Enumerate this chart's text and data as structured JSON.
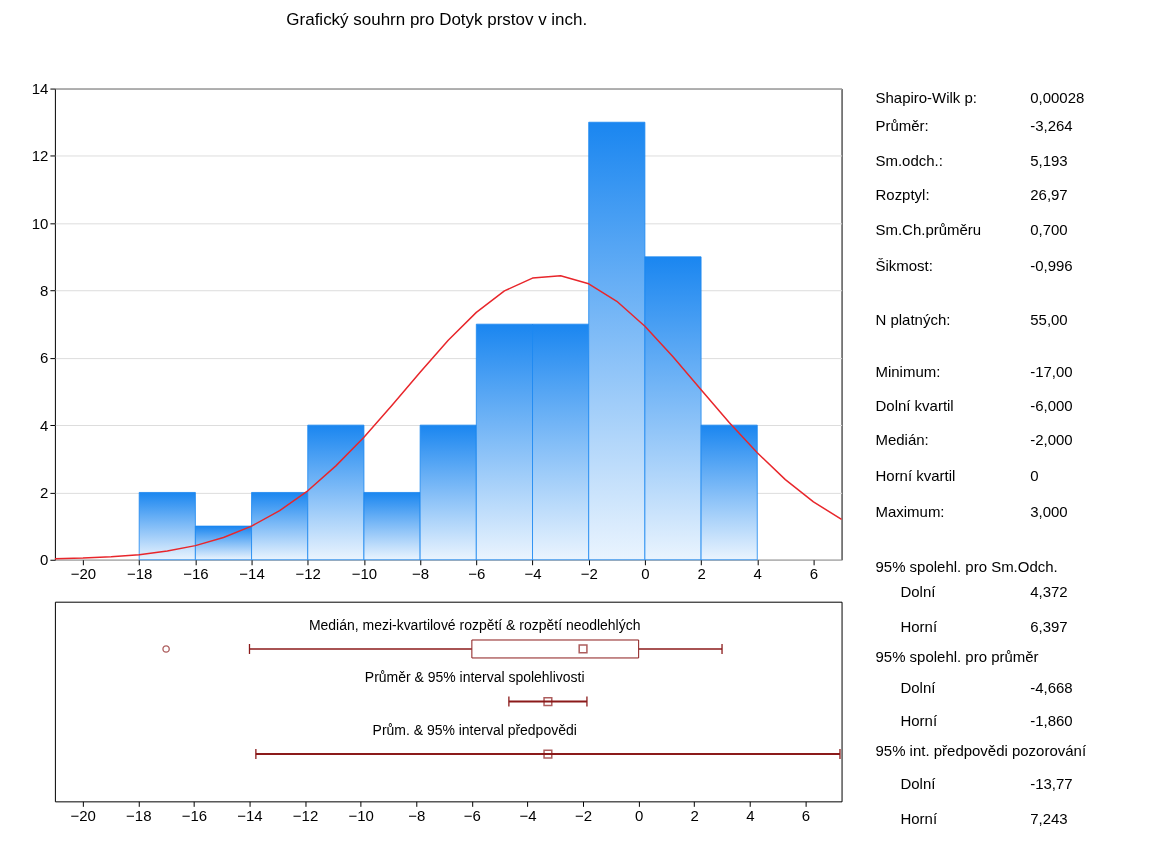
{
  "chart_data": [
    {
      "type": "histogram",
      "title": "Grafický souhrn pro Dotyk prstov v inch.",
      "bins": [
        -18,
        -16,
        -14,
        -12,
        -10,
        -8,
        -6,
        -4,
        -2,
        0,
        2,
        4
      ],
      "values": [
        2,
        1,
        2,
        4,
        2,
        4,
        7,
        7,
        13,
        9,
        4
      ],
      "color": "#1a86f0",
      "series": [
        {
          "type": "line",
          "color": "#e8262b",
          "x": [
            -21,
            -20,
            -19,
            -18,
            -17,
            -16,
            -15,
            -14,
            -13,
            -12,
            -11,
            -10,
            -9,
            -8,
            -7,
            -6,
            -5,
            -4,
            -3,
            -2,
            -1,
            0,
            1,
            2,
            3,
            4,
            5,
            6,
            7
          ],
          "values": [
            0.03,
            0.05,
            0.09,
            0.15,
            0.26,
            0.42,
            0.66,
            1.0,
            1.46,
            2.05,
            2.79,
            3.64,
            4.59,
            5.57,
            6.52,
            7.35,
            7.99,
            8.37,
            8.44,
            8.2,
            7.68,
            6.94,
            6.03,
            5.05,
            4.08,
            3.18,
            2.38,
            1.72,
            1.2
          ]
        }
      ],
      "xlim": [
        -21,
        7
      ],
      "xticks": [
        -20,
        -18,
        -16,
        -14,
        -12,
        -10,
        -8,
        -6,
        -4,
        -2,
        0,
        2,
        4,
        6
      ],
      "ylim": [
        0,
        14
      ],
      "yticks": [
        0,
        2,
        4,
        6,
        8,
        10,
        12,
        14
      ],
      "grid": "y"
    },
    {
      "type": "box",
      "orientation": "horizontal",
      "categories": [
        "Medián, mezi-kvartilové rozpětí & rozpětí neodlehlých",
        "Průměr & 95% interval spolehlivosti",
        "Prům. & 95% interval předpovědi"
      ],
      "series": [
        {
          "type": "box",
          "color": "#8b1a1a",
          "boxes": [
            {
              "low": -14,
              "q1": -6,
              "median": -2,
              "q3": 0,
              "high": 3,
              "outliers": [
                -17
              ]
            },
            null,
            null
          ]
        },
        {
          "type": "scatter",
          "color": "#8b1a1a",
          "marker": "square",
          "values": [
            null,
            -3.264,
            -3.264
          ],
          "errors": [
            null,
            [
              -4.668,
              -1.86
            ],
            [
              -13.77,
              7.243
            ]
          ]
        }
      ],
      "xlim": [
        -21,
        7.3
      ],
      "xticks": [
        -20,
        -18,
        -16,
        -14,
        -12,
        -10,
        -8,
        -6,
        -4,
        -2,
        0,
        2,
        4,
        6
      ],
      "grid": false
    },
    {
      "type": "other",
      "annotations": [
        "Shapiro-Wilk p:",
        "0,00028",
        "Průměr:",
        "-3,264",
        "Sm.odch.:",
        "5,193",
        "Rozptyl:",
        "26,97",
        "Sm.Ch.průměru",
        "0,700",
        "Šikmost:",
        "-0,996",
        "N platných:",
        "55,00",
        "Minimum:",
        "-17,00",
        "Dolní kvartil",
        "-6,000",
        "Medián:",
        "-2,000",
        "Horní kvartil",
        "0",
        "Maximum:",
        "3,000",
        "95% spolehl. pro Sm.Odch.",
        "Dolní",
        "4,372",
        "Horní",
        "6,397",
        "95% spolehl. pro průměr",
        "Dolní",
        "-4,668",
        "Horní",
        "-1,860",
        "95% int. předpovědi pozorování",
        "Dolní",
        "-13,77",
        "Horní",
        "7,243"
      ]
    }
  ]
}
